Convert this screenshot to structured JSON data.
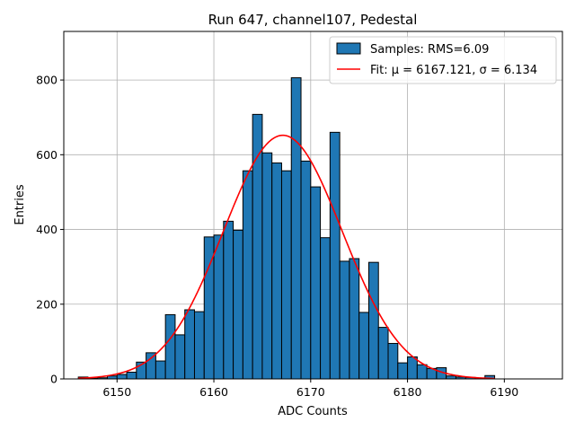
{
  "chart_data": {
    "type": "bar",
    "title": "Run 647, channel107, Pedestal",
    "xlabel": "ADC Counts",
    "ylabel": "Entries",
    "xlim": [
      6144.5,
      6196.0
    ],
    "ylim": [
      0,
      930
    ],
    "xticks": [
      6150,
      6160,
      6170,
      6180,
      6190
    ],
    "yticks": [
      0,
      200,
      400,
      600,
      800
    ],
    "grid": true,
    "legend_position": "top-right",
    "bar_color": "#1f77b4",
    "bar_edge": "#000000",
    "fit_color": "#ff0000",
    "bin_width": 1,
    "bins": {
      "left_edges": [
        6146,
        6147,
        6148,
        6149,
        6150,
        6151,
        6152,
        6153,
        6154,
        6155,
        6156,
        6157,
        6158,
        6159,
        6160,
        6161,
        6162,
        6163,
        6164,
        6165,
        6166,
        6167,
        6168,
        6169,
        6170,
        6171,
        6172,
        6173,
        6174,
        6175,
        6176,
        6177,
        6178,
        6179,
        6180,
        6181,
        6182,
        6183,
        6184,
        6185,
        6186,
        6187,
        6188
      ],
      "counts": [
        5,
        2,
        3,
        8,
        12,
        18,
        45,
        70,
        48,
        172,
        118,
        185,
        180,
        380,
        385,
        422,
        398,
        557,
        708,
        605,
        578,
        557,
        806,
        583,
        514,
        378,
        660,
        315,
        322,
        178,
        312,
        138,
        95,
        43,
        59,
        38,
        28,
        30,
        8,
        5,
        4,
        2,
        9
      ]
    },
    "series": [
      {
        "name": "Samples: RMS=6.09",
        "kind": "histogram"
      },
      {
        "name": "Fit: μ = 6167.121, σ = 6.134",
        "kind": "gaussian",
        "mu": 6167.121,
        "sigma": 6.134,
        "amplitude": 652,
        "x_range": [
          6146,
          6189
        ]
      }
    ]
  }
}
